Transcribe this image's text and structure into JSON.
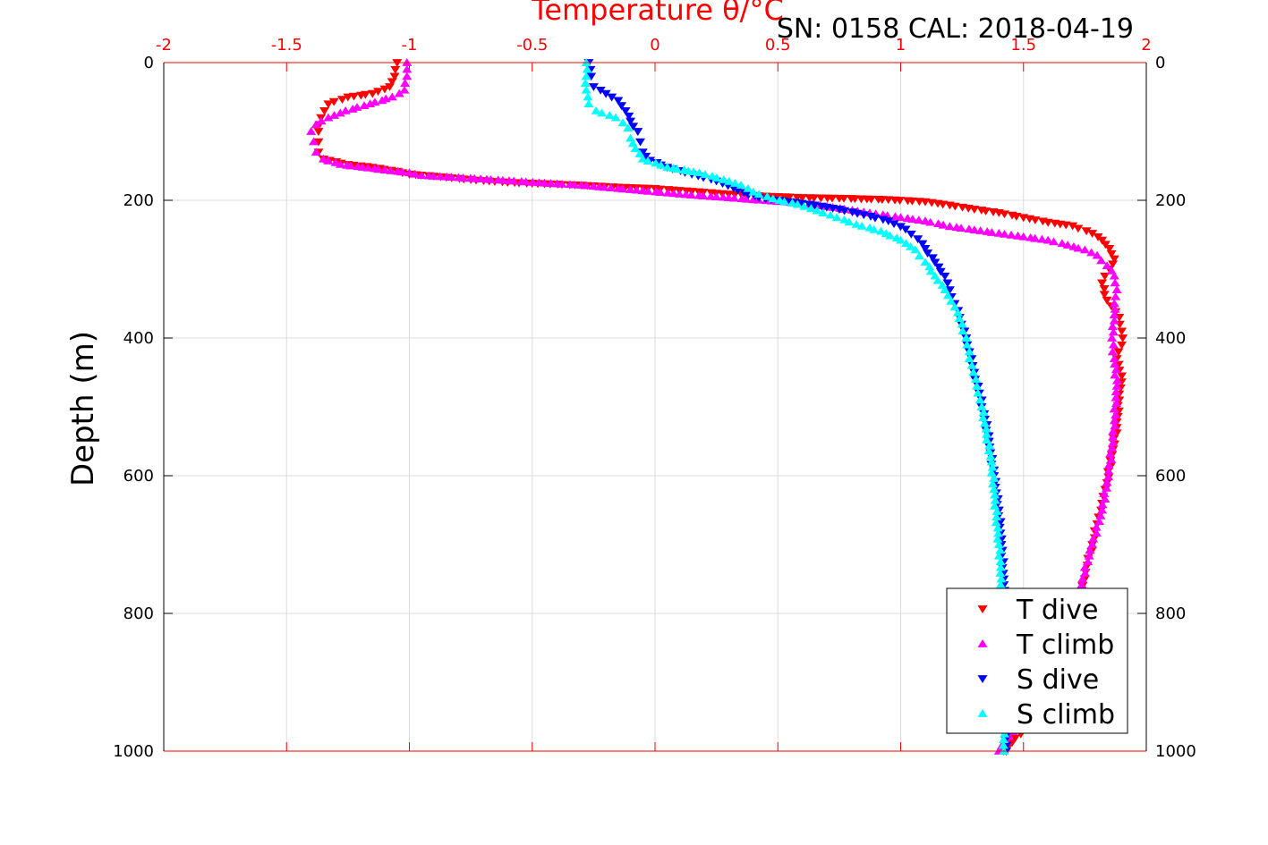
{
  "header": {
    "title": "Temperature θ/°C",
    "subtitle": "SN: 0158  CAL: 2018-04-19"
  },
  "chart_data": {
    "type": "scatter",
    "title": "Temperature θ/°C",
    "annotation": "SN: 0158  CAL: 2018-04-19",
    "xlabel": "Temperature θ/°C",
    "ylabel": "Depth (m)",
    "xlim": [
      -2,
      2
    ],
    "ylim": [
      0,
      1000
    ],
    "y_reversed": true,
    "grid": true,
    "legend_position": "bottom-right",
    "x_ticks": [
      -2,
      -1.5,
      -1,
      -0.5,
      0,
      0.5,
      1,
      1.5,
      2
    ],
    "x_tick_labels": [
      "-2",
      "-1.5",
      "-1",
      "-0.5",
      "0",
      "0.5",
      "1",
      "1.5",
      "2"
    ],
    "y_ticks": [
      0,
      200,
      400,
      600,
      800,
      1000
    ],
    "y_tick_labels": [
      "0",
      "200",
      "400",
      "600",
      "800",
      "1000"
    ],
    "series": [
      {
        "name": "T dive",
        "color": "#ff0000",
        "marker": "triangle-down",
        "points": [
          [
            -1.05,
            0
          ],
          [
            -1.06,
            20
          ],
          [
            -1.08,
            35
          ],
          [
            -1.15,
            45
          ],
          [
            -1.25,
            50
          ],
          [
            -1.33,
            60
          ],
          [
            -1.36,
            80
          ],
          [
            -1.37,
            100
          ],
          [
            -1.37,
            115
          ],
          [
            -1.37,
            130
          ],
          [
            -1.35,
            140
          ],
          [
            -1.25,
            148
          ],
          [
            -1.15,
            152
          ],
          [
            -1.05,
            158
          ],
          [
            -1.0,
            162
          ],
          [
            -0.9,
            165
          ],
          [
            -0.75,
            170
          ],
          [
            -0.6,
            174
          ],
          [
            -0.45,
            176
          ],
          [
            -0.3,
            178
          ],
          [
            -0.15,
            181
          ],
          [
            0.0,
            183
          ],
          [
            0.15,
            187
          ],
          [
            0.3,
            191
          ],
          [
            0.45,
            194
          ],
          [
            0.6,
            196
          ],
          [
            0.75,
            197
          ],
          [
            0.95,
            199
          ],
          [
            1.1,
            202
          ],
          [
            1.2,
            207
          ],
          [
            1.3,
            213
          ],
          [
            1.4,
            218
          ],
          [
            1.5,
            225
          ],
          [
            1.6,
            232
          ],
          [
            1.7,
            237
          ],
          [
            1.78,
            248
          ],
          [
            1.82,
            258
          ],
          [
            1.85,
            270
          ],
          [
            1.87,
            285
          ],
          [
            1.85,
            300
          ],
          [
            1.82,
            320
          ],
          [
            1.84,
            345
          ],
          [
            1.89,
            370
          ],
          [
            1.9,
            390
          ],
          [
            1.9,
            410
          ],
          [
            1.88,
            430
          ],
          [
            1.9,
            455
          ],
          [
            1.89,
            490
          ],
          [
            1.88,
            530
          ],
          [
            1.86,
            570
          ],
          [
            1.84,
            610
          ],
          [
            1.82,
            640
          ],
          [
            1.8,
            670
          ],
          [
            1.78,
            700
          ],
          [
            1.76,
            730
          ],
          [
            1.74,
            760
          ],
          [
            1.72,
            800
          ],
          [
            1.68,
            850
          ],
          [
            1.62,
            900
          ],
          [
            1.55,
            950
          ],
          [
            1.42,
            1000
          ]
        ]
      },
      {
        "name": "T climb",
        "color": "#ff00ff",
        "marker": "triangle-up",
        "points": [
          [
            -1.01,
            0
          ],
          [
            -1.01,
            20
          ],
          [
            -1.02,
            40
          ],
          [
            -1.07,
            50
          ],
          [
            -1.16,
            60
          ],
          [
            -1.26,
            70
          ],
          [
            -1.33,
            80
          ],
          [
            -1.38,
            90
          ],
          [
            -1.4,
            100
          ],
          [
            -1.39,
            115
          ],
          [
            -1.38,
            130
          ],
          [
            -1.35,
            140
          ],
          [
            -1.28,
            148
          ],
          [
            -1.1,
            156
          ],
          [
            -1.0,
            160
          ],
          [
            -0.95,
            164
          ],
          [
            -0.8,
            167
          ],
          [
            -0.62,
            171
          ],
          [
            -0.45,
            175
          ],
          [
            -0.3,
            178
          ],
          [
            -0.18,
            182
          ],
          [
            -0.05,
            186
          ],
          [
            0.1,
            191
          ],
          [
            0.25,
            195
          ],
          [
            0.4,
            199
          ],
          [
            0.55,
            203
          ],
          [
            0.7,
            209
          ],
          [
            0.85,
            217
          ],
          [
            1.0,
            225
          ],
          [
            1.1,
            230
          ],
          [
            1.2,
            238
          ],
          [
            1.3,
            243
          ],
          [
            1.4,
            248
          ],
          [
            1.5,
            253
          ],
          [
            1.6,
            258
          ],
          [
            1.68,
            265
          ],
          [
            1.75,
            272
          ],
          [
            1.8,
            280
          ],
          [
            1.84,
            295
          ],
          [
            1.87,
            310
          ],
          [
            1.88,
            330
          ],
          [
            1.87,
            350
          ],
          [
            1.87,
            375
          ],
          [
            1.86,
            400
          ],
          [
            1.87,
            430
          ],
          [
            1.88,
            470
          ],
          [
            1.87,
            520
          ],
          [
            1.86,
            560
          ],
          [
            1.84,
            610
          ],
          [
            1.82,
            650
          ],
          [
            1.78,
            700
          ],
          [
            1.74,
            750
          ],
          [
            1.7,
            800
          ],
          [
            1.65,
            850
          ],
          [
            1.58,
            900
          ],
          [
            1.5,
            950
          ],
          [
            1.4,
            1000
          ]
        ]
      },
      {
        "name": "S dive",
        "color": "#0000ff",
        "marker": "triangle-down",
        "points": [
          [
            -0.27,
            0
          ],
          [
            -0.26,
            20
          ],
          [
            -0.25,
            35
          ],
          [
            -0.2,
            45
          ],
          [
            -0.15,
            55
          ],
          [
            -0.12,
            70
          ],
          [
            -0.1,
            85
          ],
          [
            -0.07,
            100
          ],
          [
            -0.06,
            115
          ],
          [
            -0.05,
            130
          ],
          [
            -0.02,
            142
          ],
          [
            0.05,
            152
          ],
          [
            0.15,
            162
          ],
          [
            0.25,
            172
          ],
          [
            0.32,
            182
          ],
          [
            0.38,
            192
          ],
          [
            0.45,
            198
          ],
          [
            0.55,
            202
          ],
          [
            0.65,
            207
          ],
          [
            0.75,
            213
          ],
          [
            0.85,
            221
          ],
          [
            0.95,
            230
          ],
          [
            1.02,
            242
          ],
          [
            1.07,
            256
          ],
          [
            1.1,
            270
          ],
          [
            1.14,
            290
          ],
          [
            1.18,
            310
          ],
          [
            1.2,
            330
          ],
          [
            1.22,
            350
          ],
          [
            1.24,
            370
          ],
          [
            1.26,
            390
          ],
          [
            1.28,
            420
          ],
          [
            1.3,
            450
          ],
          [
            1.32,
            480
          ],
          [
            1.34,
            510
          ],
          [
            1.36,
            550
          ],
          [
            1.38,
            600
          ],
          [
            1.4,
            650
          ],
          [
            1.41,
            700
          ],
          [
            1.42,
            750
          ],
          [
            1.42,
            800
          ],
          [
            1.43,
            850
          ],
          [
            1.43,
            900
          ],
          [
            1.43,
            950
          ],
          [
            1.43,
            1000
          ]
        ]
      },
      {
        "name": "S climb",
        "color": "#00ffff",
        "marker": "triangle-up",
        "points": [
          [
            -0.28,
            0
          ],
          [
            -0.28,
            20
          ],
          [
            -0.28,
            40
          ],
          [
            -0.27,
            60
          ],
          [
            -0.24,
            70
          ],
          [
            -0.16,
            80
          ],
          [
            -0.11,
            95
          ],
          [
            -0.1,
            110
          ],
          [
            -0.08,
            125
          ],
          [
            -0.05,
            140
          ],
          [
            0.05,
            152
          ],
          [
            0.18,
            160
          ],
          [
            0.28,
            170
          ],
          [
            0.35,
            178
          ],
          [
            0.4,
            188
          ],
          [
            0.48,
            198
          ],
          [
            0.58,
            206
          ],
          [
            0.66,
            215
          ],
          [
            0.74,
            225
          ],
          [
            0.82,
            235
          ],
          [
            0.92,
            245
          ],
          [
            1.0,
            258
          ],
          [
            1.06,
            272
          ],
          [
            1.1,
            290
          ],
          [
            1.14,
            310
          ],
          [
            1.18,
            330
          ],
          [
            1.22,
            355
          ],
          [
            1.25,
            380
          ],
          [
            1.27,
            410
          ],
          [
            1.29,
            440
          ],
          [
            1.31,
            470
          ],
          [
            1.33,
            500
          ],
          [
            1.35,
            540
          ],
          [
            1.37,
            580
          ],
          [
            1.38,
            620
          ],
          [
            1.39,
            660
          ],
          [
            1.4,
            700
          ],
          [
            1.41,
            750
          ],
          [
            1.41,
            800
          ],
          [
            1.42,
            850
          ],
          [
            1.42,
            900
          ],
          [
            1.42,
            950
          ],
          [
            1.42,
            1000
          ]
        ]
      }
    ]
  },
  "legend": {
    "items": [
      {
        "label": "T dive",
        "color": "#ff0000",
        "marker": "triangle-down"
      },
      {
        "label": "T climb",
        "color": "#ff00ff",
        "marker": "triangle-up"
      },
      {
        "label": "S dive",
        "color": "#0000ff",
        "marker": "triangle-down"
      },
      {
        "label": "S climb",
        "color": "#00ffff",
        "marker": "triangle-up"
      }
    ]
  },
  "colors": {
    "axis_top": "#ff0000",
    "axis_other": "#000000",
    "grid": "#dddddd"
  }
}
